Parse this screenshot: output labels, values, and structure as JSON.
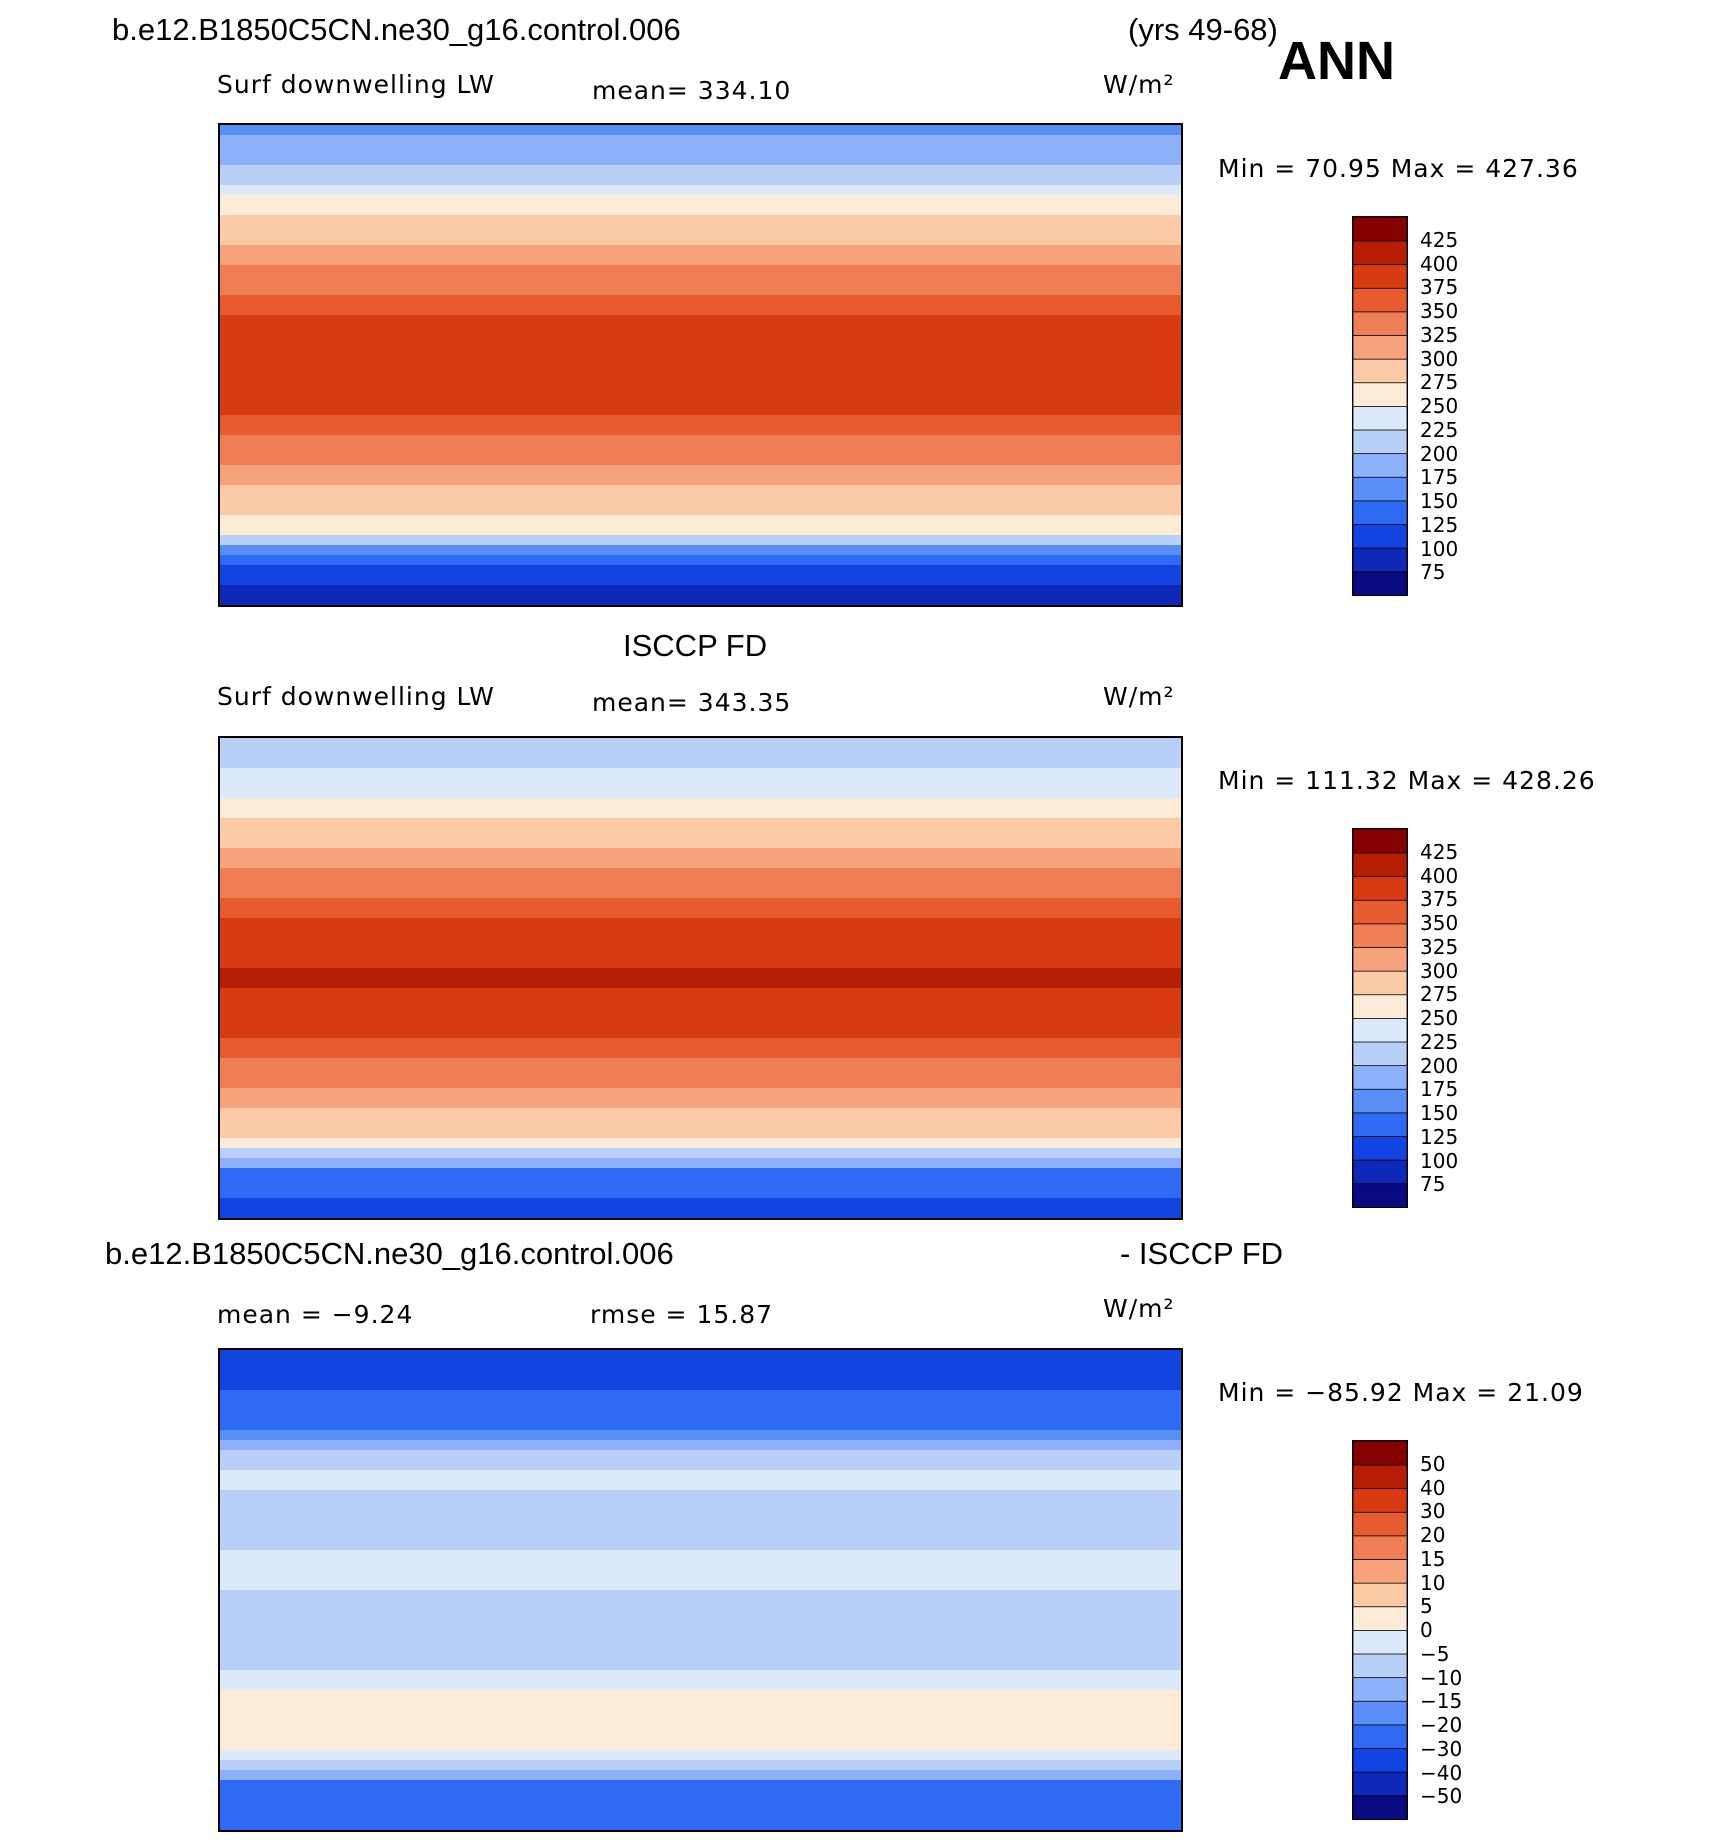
{
  "header": {
    "case": "b.e12.B1850C5CN.ne30_g16.control.006",
    "years": "(yrs 49-68)",
    "season": "ANN"
  },
  "panels": [
    {
      "title": "",
      "variable": "Surf downwelling LW",
      "stat_text": "mean=  334.10",
      "units": "W/m²",
      "minmax": "Min =   70.95  Max  =  427.36"
    },
    {
      "title": "ISCCP FD",
      "variable": "Surf downwelling LW",
      "stat_text": "mean=  343.35",
      "units": "W/m²",
      "minmax": "Min  =  111.32  Max  =  428.26"
    },
    {
      "title_left": "b.e12.B1850C5CN.ne30_g16.control.006",
      "title_right": "- ISCCP FD",
      "stat_text": "mean  =   −9.24",
      "stat_text2": "rmse  =    15.87",
      "units": "W/m²",
      "minmax": "Min  =  −85.92  Max  =    21.09"
    }
  ],
  "chart_data": [
    {
      "type": "heatmap",
      "title": "Surf downwelling LW",
      "units": "W/m2",
      "mean": 334.1,
      "min": 70.95,
      "max": 427.36,
      "levels": [
        75,
        100,
        125,
        150,
        175,
        200,
        225,
        250,
        275,
        300,
        325,
        350,
        375,
        400,
        425
      ],
      "colors": [
        "#0a0a80",
        "#0e29b8",
        "#1144e0",
        "#2f6af5",
        "#5a8ef7",
        "#8cb1f8",
        "#b8d0f8",
        "#dbe9fb",
        "#fcebd6",
        "#fbc9a6",
        "#f5a27d",
        "#ef7e55",
        "#e85a30",
        "#d83a12",
        "#b51d04",
        "#870000"
      ],
      "zonal_profile": {
        "lat": [
          90,
          75,
          60,
          45,
          30,
          15,
          0,
          -15,
          -30,
          -45,
          -60,
          -75,
          -90
        ],
        "value": [
          160,
          200,
          265,
          300,
          340,
          385,
          400,
          385,
          340,
          300,
          270,
          110,
          90
        ]
      }
    },
    {
      "type": "heatmap",
      "title": "ISCCP FD",
      "units": "W/m2",
      "mean": 343.35,
      "min": 111.32,
      "max": 428.26,
      "levels": [
        75,
        100,
        125,
        150,
        175,
        200,
        225,
        250,
        275,
        300,
        325,
        350,
        375,
        400,
        425
      ],
      "colors": [
        "#0a0a80",
        "#0e29b8",
        "#1144e0",
        "#2f6af5",
        "#5a8ef7",
        "#8cb1f8",
        "#b8d0f8",
        "#dbe9fb",
        "#fcebd6",
        "#fbc9a6",
        "#f5a27d",
        "#ef7e55",
        "#e85a30",
        "#d83a12",
        "#b51d04",
        "#870000"
      ],
      "zonal_profile": {
        "lat": [
          90,
          75,
          60,
          45,
          30,
          15,
          0,
          -15,
          -30,
          -45,
          -60,
          -75,
          -90
        ],
        "value": [
          215,
          230,
          270,
          310,
          350,
          390,
          405,
          390,
          350,
          310,
          275,
          130,
          120
        ]
      }
    },
    {
      "type": "heatmap",
      "title": "b.e12.B1850C5CN.ne30_g16.control.006 - ISCCP FD",
      "units": "W/m2",
      "mean": -9.24,
      "rmse": 15.87,
      "min": -85.92,
      "max": 21.09,
      "levels": [
        -50,
        -40,
        -30,
        -20,
        -15,
        -10,
        -5,
        0,
        5,
        10,
        15,
        20,
        30,
        40,
        50
      ],
      "colors": [
        "#0a0a80",
        "#0e29b8",
        "#1144e0",
        "#2f6af5",
        "#5a8ef7",
        "#8cb1f8",
        "#b8d0f8",
        "#dbe9fb",
        "#fcebd6",
        "#fbc9a6",
        "#f5a27d",
        "#ef7e55",
        "#e85a30",
        "#d83a12",
        "#b51d04",
        "#870000"
      ],
      "zonal_profile": {
        "lat": [
          90,
          75,
          60,
          45,
          30,
          15,
          0,
          -15,
          -30,
          -45,
          -60,
          -75,
          -90
        ],
        "value": [
          -35,
          -30,
          -20,
          -3,
          -8,
          -5,
          -5,
          -8,
          -5,
          3,
          3,
          -25,
          -30
        ]
      }
    }
  ]
}
